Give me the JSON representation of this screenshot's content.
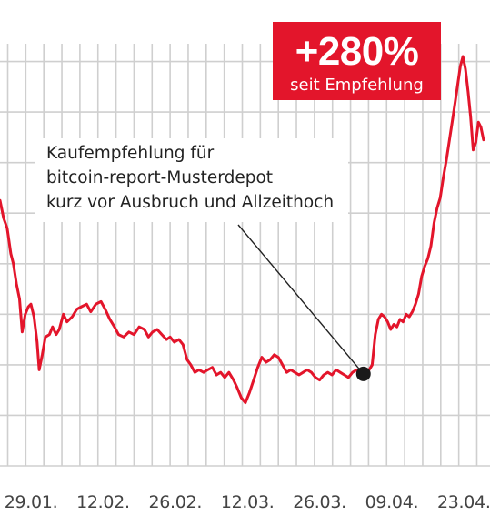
{
  "badge": {
    "value": "+280%",
    "caption": "seit Empfehlung",
    "color": "#e3152b"
  },
  "annotation": {
    "lines": [
      "Kaufempfehlung für",
      "bitcoin-report-Musterdepot",
      "kurz vor Ausbruch und Allzeithoch"
    ]
  },
  "chart_data": {
    "type": "line",
    "title": "",
    "xlabel": "",
    "ylabel": "",
    "x_tick_labels": [
      "29.01.",
      "12.02.",
      "26.02.",
      "12.03.",
      "26.03.",
      "09.04.",
      "23.04."
    ],
    "x_ticks_day": [
      6,
      20,
      34,
      48,
      62,
      76,
      90
    ],
    "xlim_day": [
      0,
      94
    ],
    "ylim": [
      0,
      9
    ],
    "grid": true,
    "y_tick_labels": [],
    "series": [
      {
        "color": "#e3152b",
        "points": [
          [
            0.0,
            5.25
          ],
          [
            0.7,
            4.9
          ],
          [
            1.4,
            4.7
          ],
          [
            2.1,
            4.2
          ],
          [
            2.6,
            4.0
          ],
          [
            3.2,
            3.6
          ],
          [
            3.8,
            3.3
          ],
          [
            4.3,
            2.65
          ],
          [
            4.9,
            3.0
          ],
          [
            5.5,
            3.15
          ],
          [
            6.0,
            3.2
          ],
          [
            6.6,
            2.95
          ],
          [
            7.2,
            2.45
          ],
          [
            7.6,
            1.9
          ],
          [
            8.2,
            2.2
          ],
          [
            8.8,
            2.55
          ],
          [
            9.6,
            2.6
          ],
          [
            10.2,
            2.75
          ],
          [
            10.9,
            2.6
          ],
          [
            11.5,
            2.7
          ],
          [
            12.3,
            3.0
          ],
          [
            13.0,
            2.85
          ],
          [
            14.0,
            2.95
          ],
          [
            14.9,
            3.1
          ],
          [
            15.8,
            3.15
          ],
          [
            16.8,
            3.2
          ],
          [
            17.6,
            3.05
          ],
          [
            18.6,
            3.2
          ],
          [
            19.6,
            3.25
          ],
          [
            20.4,
            3.1
          ],
          [
            21.3,
            2.9
          ],
          [
            22.2,
            2.75
          ],
          [
            23.0,
            2.6
          ],
          [
            24.0,
            2.55
          ],
          [
            25.0,
            2.65
          ],
          [
            26.0,
            2.6
          ],
          [
            27.0,
            2.75
          ],
          [
            28.0,
            2.7
          ],
          [
            28.8,
            2.55
          ],
          [
            29.6,
            2.65
          ],
          [
            30.5,
            2.7
          ],
          [
            31.4,
            2.6
          ],
          [
            32.3,
            2.5
          ],
          [
            33.0,
            2.55
          ],
          [
            33.8,
            2.45
          ],
          [
            34.7,
            2.5
          ],
          [
            35.5,
            2.4
          ],
          [
            36.3,
            2.1
          ],
          [
            37.0,
            2.0
          ],
          [
            37.8,
            1.85
          ],
          [
            38.6,
            1.9
          ],
          [
            39.5,
            1.85
          ],
          [
            40.3,
            1.9
          ],
          [
            41.2,
            1.95
          ],
          [
            42.0,
            1.8
          ],
          [
            42.8,
            1.85
          ],
          [
            43.6,
            1.75
          ],
          [
            44.4,
            1.85
          ],
          [
            45.3,
            1.7
          ],
          [
            46.0,
            1.55
          ],
          [
            46.8,
            1.35
          ],
          [
            47.6,
            1.25
          ],
          [
            48.4,
            1.45
          ],
          [
            49.2,
            1.7
          ],
          [
            50.0,
            1.95
          ],
          [
            50.8,
            2.15
          ],
          [
            51.6,
            2.05
          ],
          [
            52.4,
            2.1
          ],
          [
            53.2,
            2.2
          ],
          [
            54.0,
            2.15
          ],
          [
            54.8,
            2.0
          ],
          [
            55.6,
            1.85
          ],
          [
            56.4,
            1.9
          ],
          [
            57.2,
            1.85
          ],
          [
            58.0,
            1.8
          ],
          [
            58.8,
            1.85
          ],
          [
            59.6,
            1.9
          ],
          [
            60.4,
            1.85
          ],
          [
            61.2,
            1.75
          ],
          [
            62.0,
            1.7
          ],
          [
            62.8,
            1.8
          ],
          [
            63.6,
            1.85
          ],
          [
            64.4,
            1.8
          ],
          [
            65.2,
            1.9
          ],
          [
            66.0,
            1.85
          ],
          [
            66.8,
            1.8
          ],
          [
            67.6,
            1.75
          ],
          [
            68.4,
            1.85
          ],
          [
            69.2,
            1.9
          ],
          [
            70.0,
            1.8
          ],
          [
            70.8,
            1.85
          ],
          [
            71.6,
            1.9
          ],
          [
            72.2,
            2.0
          ],
          [
            72.8,
            2.6
          ],
          [
            73.4,
            2.9
          ],
          [
            74.0,
            3.0
          ],
          [
            74.6,
            2.95
          ],
          [
            75.2,
            2.85
          ],
          [
            75.8,
            2.7
          ],
          [
            76.4,
            2.8
          ],
          [
            77.0,
            2.75
          ],
          [
            77.6,
            2.9
          ],
          [
            78.2,
            2.85
          ],
          [
            78.8,
            3.0
          ],
          [
            79.4,
            2.95
          ],
          [
            80.0,
            3.05
          ],
          [
            80.6,
            3.2
          ],
          [
            81.2,
            3.4
          ],
          [
            81.8,
            3.75
          ],
          [
            82.4,
            3.95
          ],
          [
            83.0,
            4.1
          ],
          [
            83.6,
            4.35
          ],
          [
            84.2,
            4.8
          ],
          [
            84.8,
            5.1
          ],
          [
            85.4,
            5.3
          ],
          [
            86.0,
            5.7
          ],
          [
            86.6,
            6.05
          ],
          [
            87.2,
            6.45
          ],
          [
            87.8,
            6.85
          ],
          [
            88.3,
            7.2
          ],
          [
            88.8,
            7.55
          ],
          [
            89.3,
            7.9
          ],
          [
            89.8,
            8.1
          ],
          [
            90.3,
            7.85
          ],
          [
            90.8,
            7.4
          ],
          [
            91.3,
            6.9
          ],
          [
            91.8,
            6.25
          ],
          [
            92.3,
            6.4
          ],
          [
            92.8,
            6.8
          ],
          [
            93.3,
            6.7
          ],
          [
            93.8,
            6.45
          ]
        ]
      }
    ],
    "marker": {
      "day": 70.5,
      "value": 1.82,
      "color": "#1a1a1a"
    }
  }
}
